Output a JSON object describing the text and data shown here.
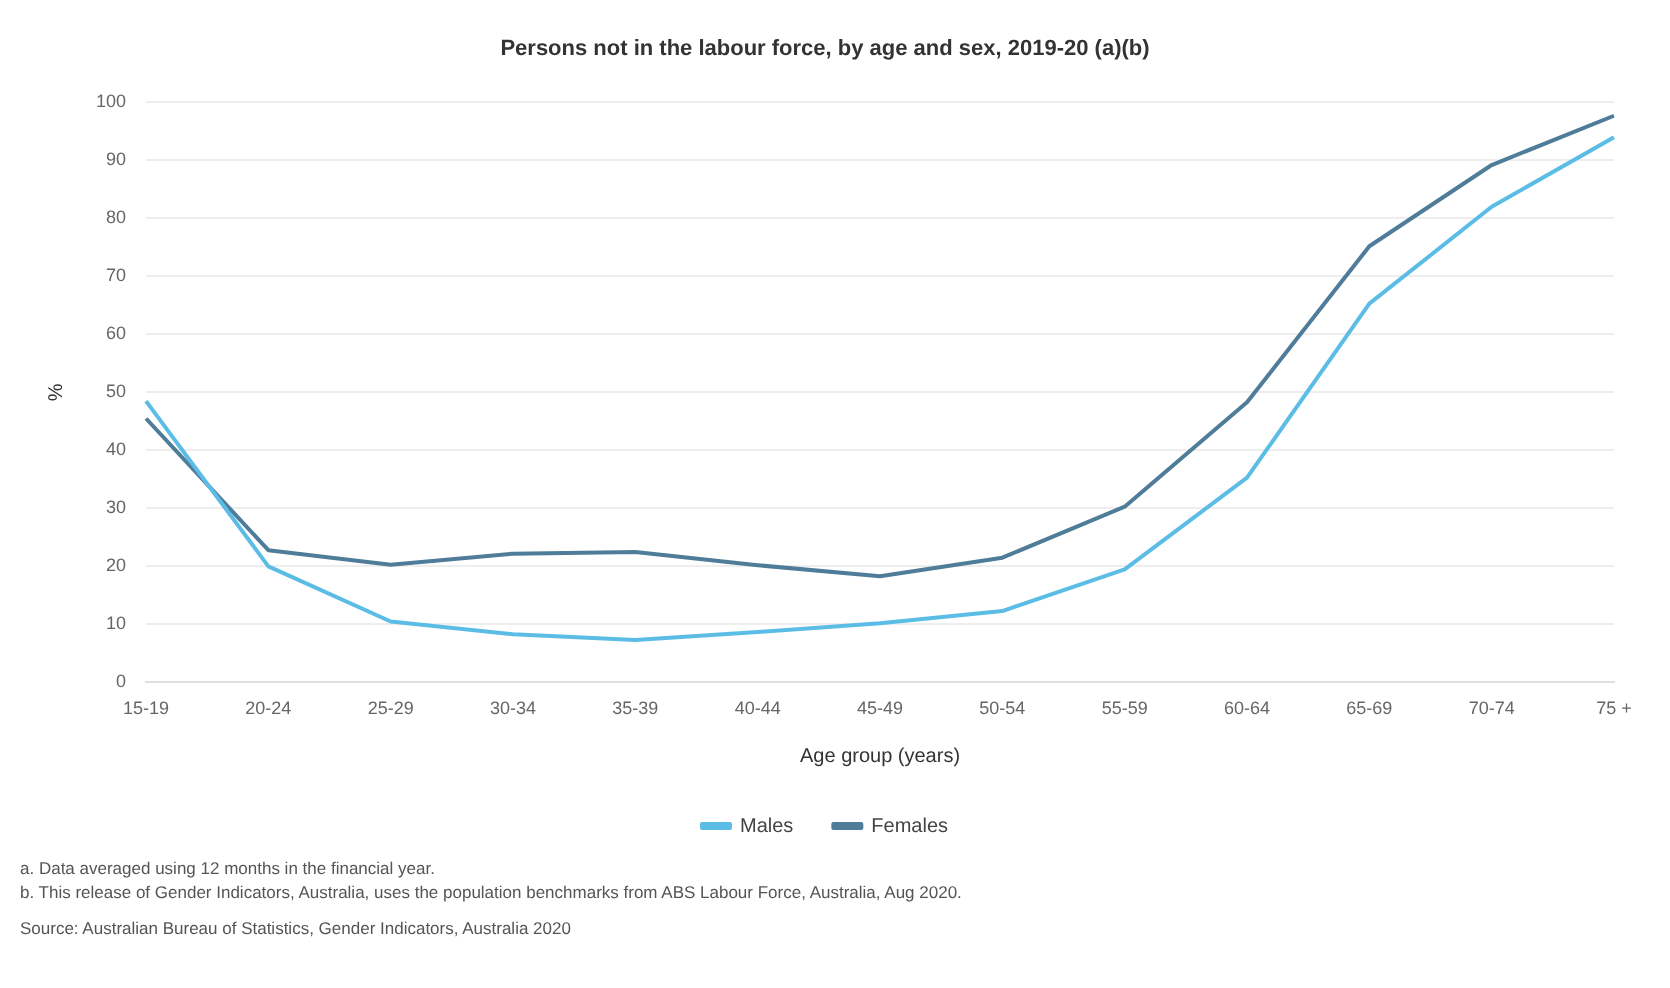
{
  "chart_data": {
    "type": "line",
    "title": "Persons not in the labour force, by age and sex, 2019-20 (a)(b)",
    "xlabel": "Age group (years)",
    "ylabel": "%",
    "categories": [
      "15-19",
      "20-24",
      "25-29",
      "30-34",
      "35-39",
      "40-44",
      "45-49",
      "50-54",
      "55-59",
      "60-64",
      "65-69",
      "70-74",
      "75 +"
    ],
    "series": [
      {
        "name": "Males",
        "color": "#5bbde6",
        "values": [
          48.5,
          20,
          10.5,
          8.3,
          7.3,
          8.7,
          10.2,
          12.3,
          19.5,
          35.3,
          65.3,
          82,
          94
        ]
      },
      {
        "name": "Females",
        "color": "#4f7d99",
        "values": [
          45.5,
          22.8,
          20.3,
          22.2,
          22.5,
          20.2,
          18.3,
          21.5,
          30.3,
          48.3,
          75.2,
          89.2,
          97.7
        ]
      }
    ],
    "ylim": [
      0,
      100
    ],
    "yticks": [
      0,
      10,
      20,
      30,
      40,
      50,
      60,
      70,
      80,
      90,
      100
    ],
    "grid": "y",
    "legend": "bottom",
    "marker": "none",
    "line_style": "solid",
    "annotations": [
      "a. Data averaged using 12 months in the financial year.",
      "b. This release of Gender Indicators, Australia, uses the population benchmarks from ABS Labour Force, Australia, Aug 2020.",
      "Source: Australian Bureau of Statistics, Gender Indicators, Australia 2020"
    ]
  }
}
